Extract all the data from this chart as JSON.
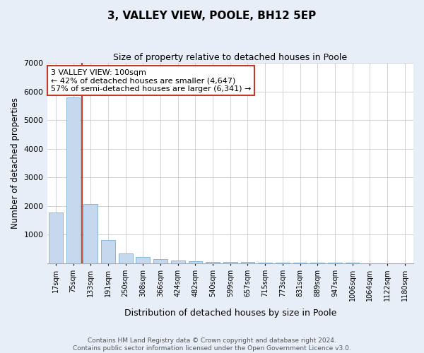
{
  "title": "3, VALLEY VIEW, POOLE, BH12 5EP",
  "subtitle": "Size of property relative to detached houses in Poole",
  "xlabel": "Distribution of detached houses by size in Poole",
  "ylabel": "Number of detached properties",
  "categories": [
    "17sqm",
    "75sqm",
    "133sqm",
    "191sqm",
    "250sqm",
    "308sqm",
    "366sqm",
    "424sqm",
    "482sqm",
    "540sqm",
    "599sqm",
    "657sqm",
    "715sqm",
    "773sqm",
    "831sqm",
    "889sqm",
    "947sqm",
    "1006sqm",
    "1064sqm",
    "1122sqm",
    "1180sqm"
  ],
  "values": [
    1780,
    5800,
    2060,
    820,
    350,
    215,
    145,
    95,
    70,
    55,
    45,
    35,
    30,
    22,
    15,
    12,
    10,
    8,
    6,
    5,
    4
  ],
  "bar_color": "#c5d8ed",
  "bar_edge_color": "#7bafd4",
  "vline_color": "#c0392b",
  "vline_pos": 1.5,
  "annotation_title": "3 VALLEY VIEW: 100sqm",
  "annotation_line1": "← 42% of detached houses are smaller (4,647)",
  "annotation_line2": "57% of semi-detached houses are larger (6,341) →",
  "annotation_box_color": "#c0392b",
  "ylim": [
    0,
    7000
  ],
  "yticks": [
    0,
    1000,
    2000,
    3000,
    4000,
    5000,
    6000,
    7000
  ],
  "footer_line1": "Contains HM Land Registry data © Crown copyright and database right 2024.",
  "footer_line2": "Contains public sector information licensed under the Open Government Licence v3.0.",
  "bg_color": "#e8eef7",
  "plot_bg_color": "#ffffff"
}
